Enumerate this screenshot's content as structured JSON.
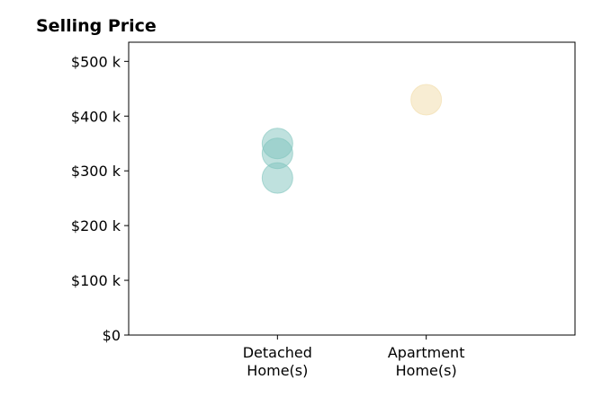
{
  "chart_data": {
    "type": "scatter",
    "title": "Selling Price",
    "xlabel": "",
    "ylabel": "",
    "categories": [
      "Detached\nHome(s)",
      "Apartment\nHome(s)"
    ],
    "x_index_range": [
      0,
      3
    ],
    "category_positions": [
      1,
      2
    ],
    "ylim": [
      0,
      535000
    ],
    "y_ticks": [
      {
        "value": 0,
        "label": "$0"
      },
      {
        "value": 100000,
        "label": "$100 k"
      },
      {
        "value": 200000,
        "label": "$200 k"
      },
      {
        "value": 300000,
        "label": "$300 k"
      },
      {
        "value": 400000,
        "label": "$400 k"
      },
      {
        "value": 500000,
        "label": "$500 k"
      }
    ],
    "grid": false,
    "legend": "none",
    "points": [
      {
        "category": "Detached\nHome(s)",
        "value": 350000,
        "color": "#7fc4bd"
      },
      {
        "category": "Detached\nHome(s)",
        "value": 332000,
        "color": "#7fc4bd"
      },
      {
        "category": "Detached\nHome(s)",
        "value": 287000,
        "color": "#7fc4bd"
      },
      {
        "category": "Apartment\nHome(s)",
        "value": 430000,
        "color": "#f2dca8"
      }
    ]
  }
}
